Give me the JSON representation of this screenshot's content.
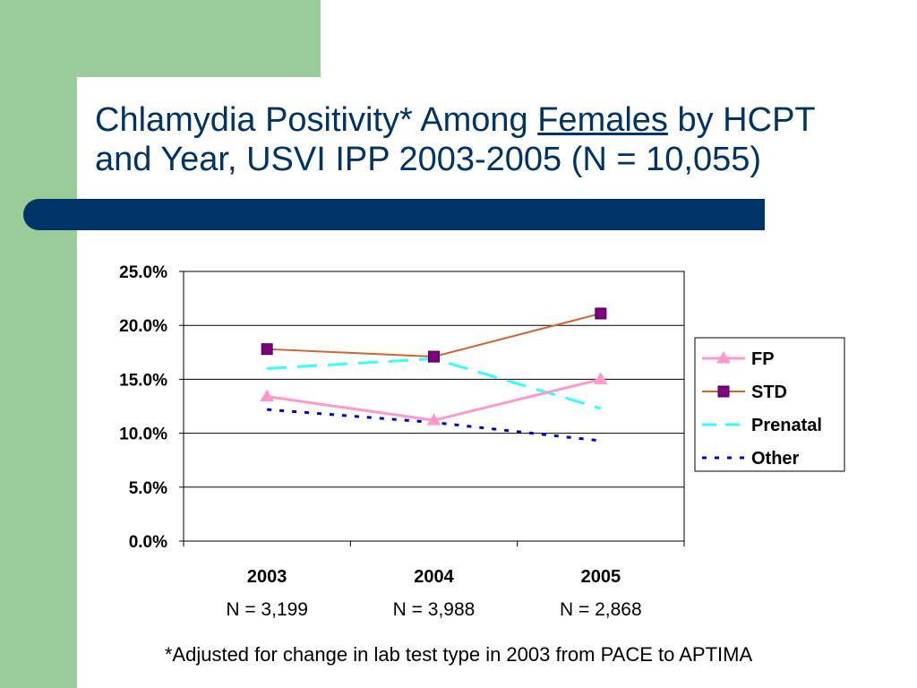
{
  "title": {
    "part1": "Chlamydia Positivity* Among ",
    "underlined": "Females",
    "part2": " by HCPT",
    "line2": "and Year, USVI IPP 2003-2005 (N = 10,055)"
  },
  "footnote": "*Adjusted for change in lab test type in 2003 from PACE to APTIMA",
  "colors": {
    "sidebar": "#99cc99",
    "bar": "#003366",
    "FP": "#ff99cc",
    "STD": "#800080",
    "STD_line": "#cc6633",
    "Prenatal": "#33ffff",
    "Other": "#0000cc"
  },
  "chart_data": {
    "type": "line",
    "categories": [
      "2003",
      "2004",
      "2005"
    ],
    "category_sublabels": [
      "N = 3,199",
      "N = 3,988",
      "N = 2,868"
    ],
    "ylim": [
      0,
      25
    ],
    "yticks": [
      "0.0%",
      "5.0%",
      "10.0%",
      "15.0%",
      "20.0%",
      "25.0%"
    ],
    "grid": true,
    "legend_position": "right",
    "series": [
      {
        "name": "FP",
        "values": [
          13.4,
          11.2,
          15.0
        ]
      },
      {
        "name": "STD",
        "values": [
          17.8,
          17.1,
          21.1
        ]
      },
      {
        "name": "Prenatal",
        "values": [
          16.0,
          16.9,
          12.3
        ]
      },
      {
        "name": "Other",
        "values": [
          12.2,
          11.0,
          9.3
        ]
      }
    ]
  }
}
